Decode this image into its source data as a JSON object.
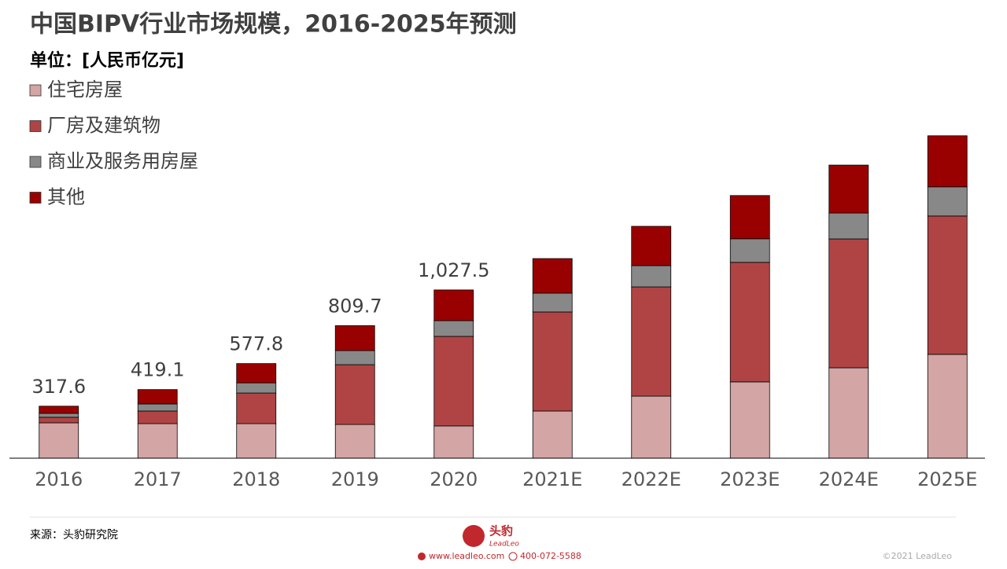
{
  "chart_data": {
    "type": "stacked_bar",
    "title": "中国BIPV行业市场规模，2016-2025年预测",
    "subtitle": "单位：[人民币亿元]",
    "categories": [
      "2016",
      "2017",
      "2018",
      "2019",
      "2020",
      "2021E",
      "2022E",
      "2023E",
      "2024E",
      "2025E"
    ],
    "series": [
      {
        "name": "住宅房屋",
        "color": "#d4a5a5",
        "values": [
          216,
          211,
          211,
          206,
          197,
          288,
          379,
          466,
          552,
          634
        ]
      },
      {
        "name": "厂房及建筑物",
        "color": "#b04444",
        "values": [
          34,
          77,
          187,
          365,
          547,
          605,
          667,
          730,
          787,
          845
        ]
      },
      {
        "name": "商业及服务用房屋",
        "color": "#888888",
        "values": [
          24,
          43,
          62,
          86,
          96,
          115,
          130,
          144,
          158,
          178
        ]
      },
      {
        "name": "其他",
        "color": "#990000",
        "values": [
          43.6,
          88.1,
          117.8,
          152.7,
          187.5,
          211,
          240,
          264,
          293,
          312
        ]
      }
    ],
    "totals": [
      317.6,
      419.1,
      577.8,
      809.7,
      1027.5,
      null,
      null,
      null,
      null,
      null
    ],
    "total_labels": [
      "317.6",
      "419.1",
      "577.8",
      "809.7",
      "1,027.5",
      null,
      null,
      null,
      null,
      null
    ],
    "ylim": [
      0,
      2000
    ],
    "source": "来源：头豹研究院",
    "brand": "头豹",
    "brand_en": "LeadLeo",
    "website": "www.leadleo.com",
    "phone": "400-072-5588",
    "copyright": "©2021 LeadLeo"
  }
}
